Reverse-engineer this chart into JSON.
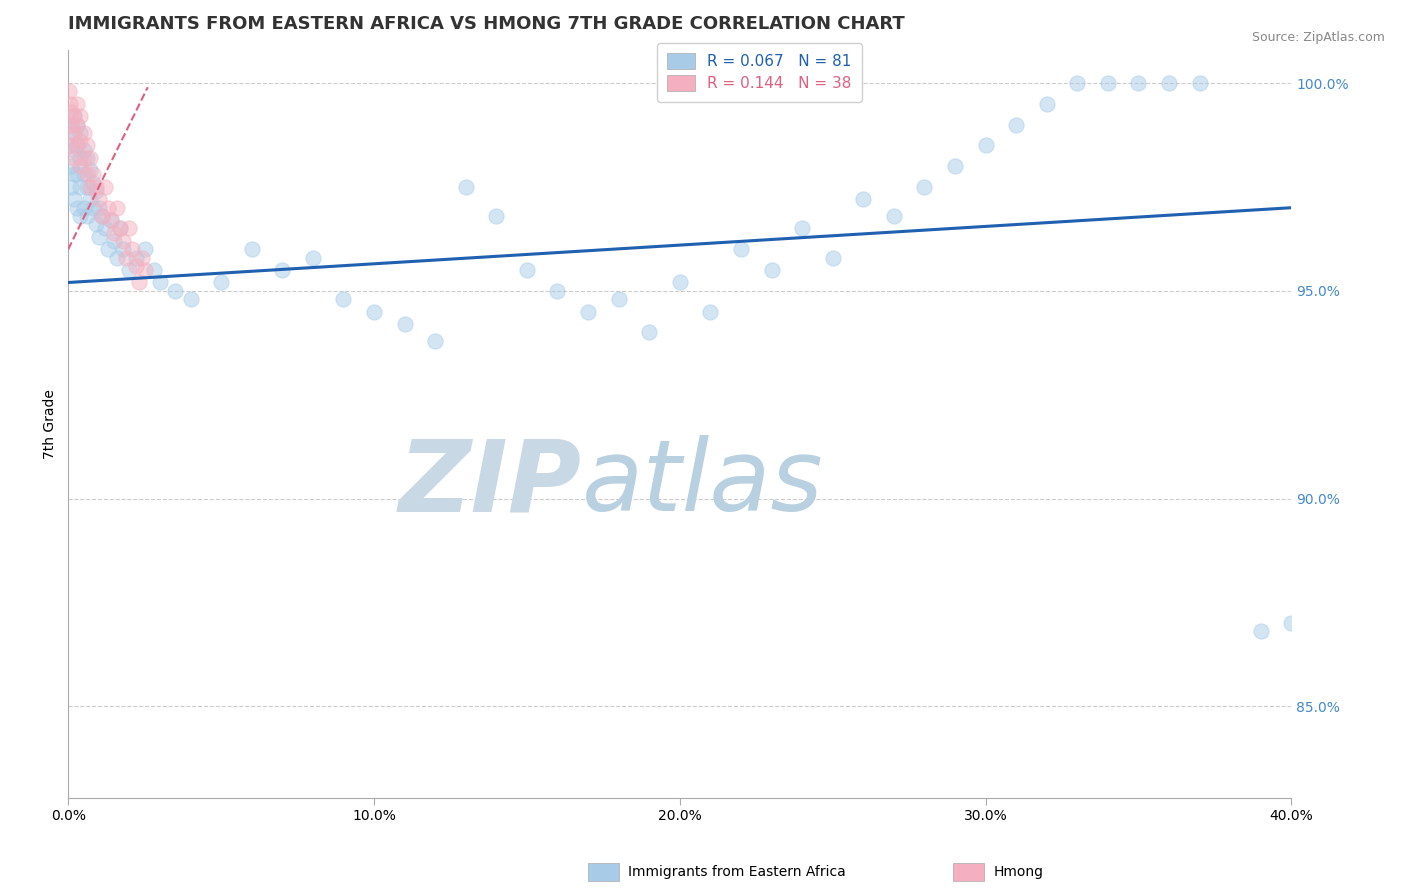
{
  "title": "IMMIGRANTS FROM EASTERN AFRICA VS HMONG 7TH GRADE CORRELATION CHART",
  "source_text": "Source: ZipAtlas.com",
  "ylabel": "7th Grade",
  "watermark": "ZIPatlas",
  "xlim": [
    0.0,
    0.4
  ],
  "ylim": [
    0.828,
    1.008
  ],
  "xticks": [
    0.0,
    0.1,
    0.2,
    0.3,
    0.4
  ],
  "xticklabels": [
    "0.0%",
    "10.0%",
    "20.0%",
    "30.0%",
    "40.0%"
  ],
  "yticks_right": [
    0.85,
    0.9,
    0.95,
    1.0
  ],
  "yticklabels_right": [
    "85.0%",
    "90.0%",
    "95.0%",
    "100.0%"
  ],
  "legend_entries": [
    {
      "label": "Immigrants from Eastern Africa",
      "R": "0.067",
      "N": "81",
      "color": "#a8cce8"
    },
    {
      "label": "Hmong",
      "R": "0.144",
      "N": "38",
      "color": "#f4b0c0"
    }
  ],
  "blue_scatter_x": [
    0.001,
    0.001,
    0.001,
    0.001,
    0.002,
    0.002,
    0.002,
    0.002,
    0.002,
    0.003,
    0.003,
    0.003,
    0.003,
    0.004,
    0.004,
    0.004,
    0.004,
    0.005,
    0.005,
    0.005,
    0.006,
    0.006,
    0.006,
    0.007,
    0.007,
    0.008,
    0.008,
    0.009,
    0.009,
    0.01,
    0.01,
    0.011,
    0.012,
    0.013,
    0.014,
    0.015,
    0.016,
    0.017,
    0.018,
    0.02,
    0.022,
    0.025,
    0.028,
    0.03,
    0.035,
    0.04,
    0.05,
    0.06,
    0.07,
    0.08,
    0.09,
    0.1,
    0.11,
    0.12,
    0.13,
    0.14,
    0.15,
    0.16,
    0.17,
    0.18,
    0.19,
    0.2,
    0.21,
    0.22,
    0.23,
    0.24,
    0.25,
    0.26,
    0.27,
    0.28,
    0.29,
    0.3,
    0.31,
    0.32,
    0.33,
    0.34,
    0.35,
    0.36,
    0.37,
    0.39,
    0.4
  ],
  "blue_scatter_y": [
    0.99,
    0.985,
    0.98,
    0.975,
    0.992,
    0.988,
    0.984,
    0.978,
    0.972,
    0.99,
    0.985,
    0.978,
    0.97,
    0.988,
    0.982,
    0.975,
    0.968,
    0.984,
    0.978,
    0.97,
    0.982,
    0.975,
    0.968,
    0.979,
    0.972,
    0.976,
    0.97,
    0.974,
    0.966,
    0.97,
    0.963,
    0.968,
    0.965,
    0.96,
    0.967,
    0.962,
    0.958,
    0.965,
    0.96,
    0.955,
    0.958,
    0.96,
    0.955,
    0.952,
    0.95,
    0.948,
    0.952,
    0.96,
    0.955,
    0.958,
    0.948,
    0.945,
    0.942,
    0.938,
    0.975,
    0.968,
    0.955,
    0.95,
    0.945,
    0.948,
    0.94,
    0.952,
    0.945,
    0.96,
    0.955,
    0.965,
    0.958,
    0.972,
    0.968,
    0.975,
    0.98,
    0.985,
    0.99,
    0.995,
    1.0,
    1.0,
    1.0,
    1.0,
    1.0,
    0.868,
    0.87
  ],
  "pink_scatter_x": [
    0.0003,
    0.0005,
    0.001,
    0.001,
    0.001,
    0.002,
    0.002,
    0.002,
    0.003,
    0.003,
    0.003,
    0.004,
    0.004,
    0.004,
    0.005,
    0.005,
    0.006,
    0.006,
    0.007,
    0.007,
    0.008,
    0.009,
    0.01,
    0.011,
    0.012,
    0.013,
    0.014,
    0.015,
    0.016,
    0.017,
    0.018,
    0.019,
    0.02,
    0.021,
    0.022,
    0.023,
    0.024,
    0.025
  ],
  "pink_scatter_y": [
    0.998,
    0.995,
    0.993,
    0.99,
    0.985,
    0.992,
    0.988,
    0.982,
    0.995,
    0.99,
    0.985,
    0.992,
    0.986,
    0.98,
    0.988,
    0.982,
    0.985,
    0.978,
    0.982,
    0.975,
    0.978,
    0.975,
    0.972,
    0.968,
    0.975,
    0.97,
    0.967,
    0.964,
    0.97,
    0.965,
    0.962,
    0.958,
    0.965,
    0.96,
    0.956,
    0.952,
    0.958,
    0.955
  ],
  "blue_line_x": [
    0.0,
    0.4
  ],
  "blue_line_y": [
    0.952,
    0.97
  ],
  "pink_line_x": [
    0.0,
    0.026
  ],
  "pink_line_y": [
    0.96,
    0.999
  ],
  "scatter_color_blue": "#a8cce8",
  "scatter_color_pink": "#f4b0c0",
  "line_color_blue": "#2060b0",
  "line_color_pink": "#e06080",
  "grid_color": "#cccccc",
  "watermark_color_zip": "#c8dce8",
  "watermark_color_atlas": "#c8dce8",
  "title_fontsize": 13,
  "axis_fontsize": 10,
  "legend_fontsize": 11,
  "scatter_size": 120,
  "scatter_alpha": 0.5
}
